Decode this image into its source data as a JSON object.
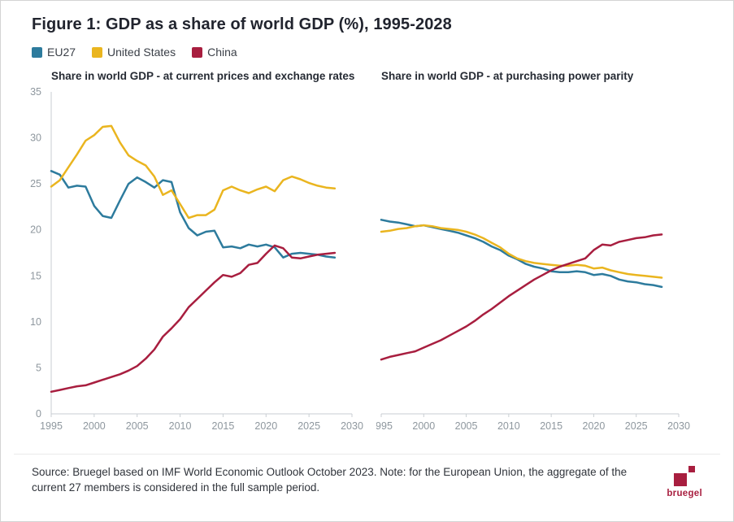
{
  "title": "Figure 1: GDP as a share of world GDP (%), 1995-2028",
  "legend": {
    "items": [
      {
        "label": "EU27",
        "color": "#2d7b9d"
      },
      {
        "label": "United States",
        "color": "#eab51f"
      },
      {
        "label": "China",
        "color": "#a81e3f"
      }
    ]
  },
  "colors": {
    "axis": "#c9ced3",
    "tick_label": "#8e979e",
    "brand_red": "#a81e3f"
  },
  "chart_data": {
    "type": "line",
    "legend_position": "top-left",
    "grid": false,
    "xlabel": "",
    "ylabel": "",
    "xlim": [
      1995,
      2030
    ],
    "ylim": [
      0,
      35
    ],
    "x_ticks": [
      1995,
      2000,
      2005,
      2010,
      2015,
      2020,
      2025,
      2030
    ],
    "y_ticks": [
      0,
      5,
      10,
      15,
      20,
      25,
      30,
      35
    ],
    "years": [
      1995,
      1996,
      1997,
      1998,
      1999,
      2000,
      2001,
      2002,
      2003,
      2004,
      2005,
      2006,
      2007,
      2008,
      2009,
      2010,
      2011,
      2012,
      2013,
      2014,
      2015,
      2016,
      2017,
      2018,
      2019,
      2020,
      2021,
      2022,
      2023,
      2024,
      2025,
      2026,
      2027,
      2028
    ],
    "charts": [
      {
        "subtitle": "Share in world GDP - at current prices and exchange rates",
        "series": [
          {
            "name": "EU27",
            "values": [
              26.4,
              26.0,
              24.6,
              24.8,
              24.7,
              22.6,
              21.5,
              21.3,
              23.2,
              25.0,
              25.7,
              25.2,
              24.6,
              25.4,
              25.2,
              21.9,
              20.2,
              19.4,
              19.8,
              19.9,
              18.1,
              18.2,
              18.0,
              18.4,
              18.2,
              18.4,
              18.1,
              17.0,
              17.4,
              17.5,
              17.4,
              17.3,
              17.1,
              17.0
            ]
          },
          {
            "name": "United States",
            "values": [
              24.7,
              25.4,
              26.8,
              28.2,
              29.7,
              30.3,
              31.2,
              31.3,
              29.5,
              28.1,
              27.5,
              27.0,
              25.8,
              23.8,
              24.3,
              22.8,
              21.3,
              21.6,
              21.6,
              22.2,
              24.3,
              24.7,
              24.3,
              24.0,
              24.4,
              24.7,
              24.2,
              25.4,
              25.8,
              25.5,
              25.1,
              24.8,
              24.6,
              24.5
            ]
          },
          {
            "name": "China",
            "values": [
              2.4,
              2.6,
              2.8,
              3.0,
              3.1,
              3.4,
              3.7,
              4.0,
              4.3,
              4.7,
              5.2,
              6.0,
              7.0,
              8.4,
              9.3,
              10.3,
              11.6,
              12.5,
              13.4,
              14.3,
              15.1,
              14.9,
              15.3,
              16.2,
              16.4,
              17.4,
              18.3,
              18.0,
              17.0,
              16.9,
              17.1,
              17.3,
              17.4,
              17.5
            ]
          }
        ]
      },
      {
        "subtitle": "Share in world GDP - at purchasing power parity",
        "series": [
          {
            "name": "EU27",
            "values": [
              21.1,
              20.9,
              20.8,
              20.6,
              20.4,
              20.5,
              20.3,
              20.1,
              19.9,
              19.7,
              19.4,
              19.1,
              18.7,
              18.2,
              17.8,
              17.2,
              16.8,
              16.3,
              16.0,
              15.8,
              15.5,
              15.4,
              15.4,
              15.5,
              15.4,
              15.1,
              15.2,
              15.0,
              14.6,
              14.4,
              14.3,
              14.1,
              14.0,
              13.8
            ]
          },
          {
            "name": "United States",
            "values": [
              19.8,
              19.9,
              20.1,
              20.2,
              20.4,
              20.5,
              20.4,
              20.2,
              20.1,
              20.0,
              19.8,
              19.5,
              19.1,
              18.6,
              18.1,
              17.4,
              16.9,
              16.6,
              16.4,
              16.3,
              16.2,
              16.1,
              16.1,
              16.2,
              16.1,
              15.8,
              15.9,
              15.6,
              15.4,
              15.2,
              15.1,
              15.0,
              14.9,
              14.8
            ]
          },
          {
            "name": "China",
            "values": [
              5.9,
              6.2,
              6.4,
              6.6,
              6.8,
              7.2,
              7.6,
              8.0,
              8.5,
              9.0,
              9.5,
              10.1,
              10.8,
              11.4,
              12.1,
              12.8,
              13.4,
              14.0,
              14.6,
              15.1,
              15.6,
              16.0,
              16.3,
              16.6,
              16.9,
              17.8,
              18.4,
              18.3,
              18.7,
              18.9,
              19.1,
              19.2,
              19.4,
              19.5
            ]
          }
        ]
      }
    ]
  },
  "footer": {
    "source": "Source: Bruegel based on IMF World Economic Outlook October 2023. Note: for the European Union, the aggregate of the current 27 members is considered in the full sample period.",
    "logo_text": "bruegel"
  }
}
